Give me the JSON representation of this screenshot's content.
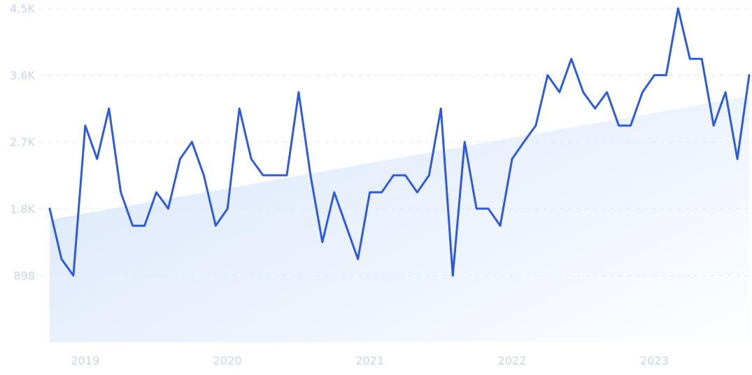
{
  "chart_data": {
    "type": "line",
    "title": "",
    "xlabel": "",
    "ylabel": "",
    "grid": "horizontal dashed",
    "legend": "none",
    "ylim": [
      0,
      4500
    ],
    "y_ticks": [
      {
        "value": 898,
        "label": "898"
      },
      {
        "value": 1800,
        "label": "1.8K"
      },
      {
        "value": 2700,
        "label": "2.7K"
      },
      {
        "value": 3600,
        "label": "3.6K"
      },
      {
        "value": 4500,
        "label": "4.5K"
      }
    ],
    "x_ticks": [
      {
        "value": "2019-01",
        "label": "2019"
      },
      {
        "value": "2020-01",
        "label": "2020"
      },
      {
        "value": "2021-01",
        "label": "2021"
      },
      {
        "value": "2022-01",
        "label": "2022"
      },
      {
        "value": "2023-01",
        "label": "2023"
      }
    ],
    "xlim": [
      "2018-10",
      "2023-09"
    ],
    "series": [
      {
        "color": "#2f5bdb",
        "x": [
          "2018-10",
          "2018-11",
          "2018-12",
          "2019-01",
          "2019-02",
          "2019-03",
          "2019-04",
          "2019-05",
          "2019-06",
          "2019-07",
          "2019-08",
          "2019-09",
          "2019-10",
          "2019-11",
          "2019-12",
          "2020-01",
          "2020-02",
          "2020-03",
          "2020-04",
          "2020-05",
          "2020-06",
          "2020-07",
          "2020-08",
          "2020-09",
          "2020-10",
          "2020-11",
          "2020-12",
          "2021-01",
          "2021-02",
          "2021-03",
          "2021-04",
          "2021-05",
          "2021-06",
          "2021-07",
          "2021-08",
          "2021-09",
          "2021-10",
          "2021-11",
          "2021-12",
          "2022-01",
          "2022-02",
          "2022-03",
          "2022-04",
          "2022-05",
          "2022-06",
          "2022-07",
          "2022-08",
          "2022-09",
          "2022-10",
          "2022-11",
          "2022-12",
          "2023-01",
          "2023-02",
          "2023-03",
          "2023-04",
          "2023-05",
          "2023-06",
          "2023-07",
          "2023-08",
          "2023-09"
        ],
        "values": [
          1800,
          1120,
          898,
          2920,
          2470,
          3150,
          2020,
          1570,
          1570,
          2020,
          1800,
          2470,
          2700,
          2250,
          1570,
          1800,
          3150,
          2470,
          2250,
          2250,
          2250,
          3370,
          2250,
          1350,
          2020,
          1570,
          1120,
          2020,
          2020,
          2250,
          2250,
          2020,
          2250,
          3150,
          898,
          2700,
          1800,
          1800,
          1570,
          2470,
          2700,
          2920,
          3600,
          3370,
          3820,
          3370,
          3150,
          3370,
          2920,
          2920,
          3370,
          3600,
          3600,
          4500,
          3820,
          3820,
          2920,
          3370,
          2470,
          3600
        ]
      }
    ],
    "trend": {
      "start": 1650,
      "end": 3320,
      "color": "#dbe8fb"
    }
  }
}
